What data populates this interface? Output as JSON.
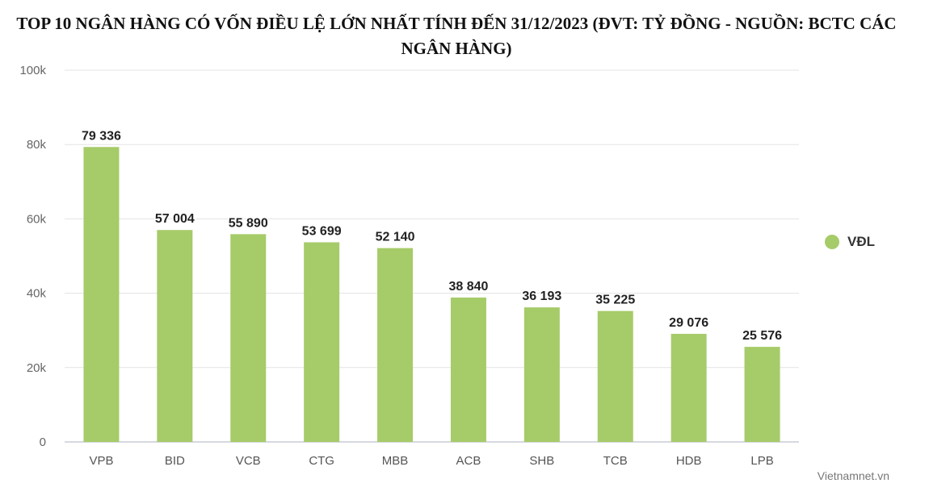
{
  "title": "TOP 10 NGÂN HÀNG CÓ VỐN ĐIỀU LỆ LỚN NHẤT TÍNH ĐẾN 31/12/2023 (ĐVT: TỶ ĐỒNG - NGUỒN: BCTC CÁC NGÂN HÀNG)",
  "credit": "Vietnamnet.vn",
  "legend": {
    "label": "VĐL",
    "color": "#a6cb69"
  },
  "chart_data": {
    "type": "bar",
    "title": "TOP 10 NGÂN HÀNG CÓ VỐN ĐIỀU LỆ LỚN NHẤT TÍNH ĐẾN 31/12/2023 (ĐVT: TỶ ĐỒNG - NGUỒN: BCTC CÁC NGÂN HÀNG)",
    "categories": [
      "VPB",
      "BID",
      "VCB",
      "CTG",
      "MBB",
      "ACB",
      "SHB",
      "TCB",
      "HDB",
      "LPB"
    ],
    "series": [
      {
        "name": "VĐL",
        "color": "#a6cb69",
        "values": [
          79336,
          57004,
          55890,
          53699,
          52140,
          38840,
          36193,
          35225,
          29076,
          25576
        ],
        "labels": [
          "79 336",
          "57 004",
          "55 890",
          "53 699",
          "52 140",
          "38 840",
          "36 193",
          "35 225",
          "29 076",
          "25 576"
        ]
      }
    ],
    "ylim": [
      0,
      100000
    ],
    "yticks": [
      0,
      20000,
      40000,
      60000,
      80000,
      100000
    ],
    "ytick_labels": [
      "0",
      "20k",
      "40k",
      "60k",
      "80k",
      "100k"
    ],
    "grid": true,
    "legend_position": "right"
  }
}
